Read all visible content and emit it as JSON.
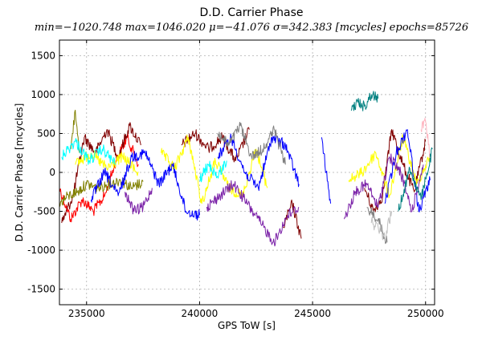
{
  "chart_data": {
    "type": "line",
    "title": "D.D. Carrier Phase",
    "subtitle": "min=−1020.748  max=1046.020  μ=−41.076  σ=342.383 [mcycles]  epochs=85726",
    "xlabel": "GPS ToW [s]",
    "ylabel": "D.D. Carrier Phase [mcycles]",
    "xlim": [
      233800,
      250400
    ],
    "ylim": [
      -1700,
      1700
    ],
    "xticks": [
      235000,
      240000,
      245000,
      250000
    ],
    "yticks": [
      -1500,
      -1000,
      -500,
      0,
      500,
      1000,
      1500
    ],
    "grid": true,
    "legend": "none",
    "stats": {
      "min": -1020.748,
      "max": 1046.02,
      "mean": -41.076,
      "std": 342.383,
      "unit": "mcycles",
      "epochs": 85726
    },
    "series": [
      {
        "color": "#ff0000",
        "segments": [
          {
            "x": [
              233800,
              234300,
              234800,
              235300,
              235800,
              236300,
              236800,
              237300
            ],
            "y": [
              -200,
              -600,
              -350,
              -500,
              -300,
              150,
              450,
              100
            ]
          }
        ]
      },
      {
        "color": "#800000",
        "segments": [
          {
            "x": [
              233900,
              234400,
              234900,
              235400,
              235900,
              236400,
              236900,
              237400
            ],
            "y": [
              -650,
              -300,
              450,
              250,
              550,
              200,
              600,
              350
            ]
          },
          {
            "x": [
              239200,
              239800,
              240400,
              241000,
              241600,
              242200
            ],
            "y": [
              350,
              500,
              300,
              450,
              150,
              550
            ]
          },
          {
            "x": [
              243700,
              244100,
              244500
            ],
            "y": [
              -700,
              -400,
              -850
            ]
          },
          {
            "x": [
              247300,
              247700,
              248100,
              248500,
              249000,
              249500,
              250000
            ],
            "y": [
              -200,
              -500,
              -300,
              550,
              100,
              -250,
              400
            ]
          }
        ]
      },
      {
        "color": "#808000",
        "segments": [
          {
            "x": [
              233800,
              234200,
              234600,
              235000,
              235500,
              236000,
              236500,
              237000,
              237500
            ],
            "y": [
              -400,
              -300,
              -250,
              -150,
              -200,
              -150,
              -100,
              -200,
              -120
            ]
          },
          {
            "x": [
              234300,
              234500,
              234700
            ],
            "y": [
              300,
              800,
              250
            ]
          }
        ]
      },
      {
        "color": "#ffff00",
        "segments": [
          {
            "x": [
              234500,
              235200,
              235900,
              236600,
              237300
            ],
            "y": [
              100,
              250,
              50,
              200,
              0
            ]
          },
          {
            "x": [
              238300,
              238900,
              239500,
              240100,
              240700,
              241300,
              241900,
              242500,
              243000
            ],
            "y": [
              250,
              50,
              450,
              -400,
              150,
              -200,
              -300,
              300,
              -200
            ]
          },
          {
            "x": [
              246600,
              247200,
              247800,
              248400,
              249000,
              249600,
              250200
            ],
            "y": [
              -100,
              0,
              250,
              -300,
              450,
              -150,
              200
            ]
          }
        ]
      },
      {
        "color": "#00ffff",
        "segments": [
          {
            "x": [
              233900,
              234500,
              235100,
              235700,
              236300
            ],
            "y": [
              200,
              400,
              150,
              300,
              100
            ]
          },
          {
            "x": [
              240000,
              240400,
              240800,
              241200
            ],
            "y": [
              -100,
              100,
              -50,
              150
            ]
          }
        ]
      },
      {
        "color": "#0000ff",
        "segments": [
          {
            "x": [
              235200,
              235800,
              236400,
              237000,
              237600,
              238200,
              238800,
              239400,
              240000
            ],
            "y": [
              -350,
              0,
              -300,
              200,
              250,
              -150,
              100,
              -500,
              -550
            ]
          },
          {
            "x": [
              240800,
              241400,
              242000,
              242600,
              243200,
              243800,
              244400
            ],
            "y": [
              200,
              450,
              0,
              -200,
              450,
              350,
              -150
            ]
          },
          {
            "x": [
              245400,
              245600,
              245800
            ],
            "y": [
              450,
              0,
              -400
            ]
          },
          {
            "x": [
              248200,
              248700,
              249200,
              249700,
              250200
            ],
            "y": [
              -400,
              250,
              550,
              -500,
              -100
            ]
          }
        ]
      },
      {
        "color": "#7b22a8",
        "segments": [
          {
            "x": [
              236700,
              237100,
              237500,
              237900
            ],
            "y": [
              -250,
              -500,
              -450,
              -200
            ]
          },
          {
            "x": [
              240300,
              240900,
              241500,
              242100,
              242700,
              243300,
              243900,
              244400
            ],
            "y": [
              -450,
              -300,
              -150,
              -400,
              -650,
              -900,
              -550,
              -450
            ]
          },
          {
            "x": [
              246400,
              246900,
              247400,
              247900,
              248400,
              248900,
              249400,
              249900
            ],
            "y": [
              -600,
              -250,
              -150,
              -450,
              200,
              0,
              -500,
              100
            ]
          }
        ]
      },
      {
        "color": "#808080",
        "segments": [
          {
            "x": [
              240800,
              241300,
              241800,
              242300,
              242800,
              243300,
              243800
            ],
            "y": [
              500,
              350,
              600,
              200,
              300,
              550,
              100
            ]
          },
          {
            "x": [
              247400,
              247900,
              248300
            ],
            "y": [
              -450,
              -600,
              -900
            ]
          }
        ]
      },
      {
        "color": "#c0c0c0",
        "segments": [
          {
            "x": [
              247600,
              247900,
              248200,
              248500
            ],
            "y": [
              -650,
              -700,
              -850,
              -500
            ]
          }
        ]
      },
      {
        "color": "#008080",
        "segments": [
          {
            "x": [
              246700,
              247000,
              247300,
              247600,
              247900
            ],
            "y": [
              800,
              900,
              850,
              1000,
              950
            ]
          },
          {
            "x": [
              248800,
              249300,
              249800,
              250300
            ],
            "y": [
              -500,
              50,
              -350,
              300
            ]
          }
        ]
      },
      {
        "color": "#ffb6c1",
        "segments": [
          {
            "x": [
              249800,
              250000,
              250200
            ],
            "y": [
              550,
              650,
              200
            ]
          }
        ]
      }
    ]
  }
}
